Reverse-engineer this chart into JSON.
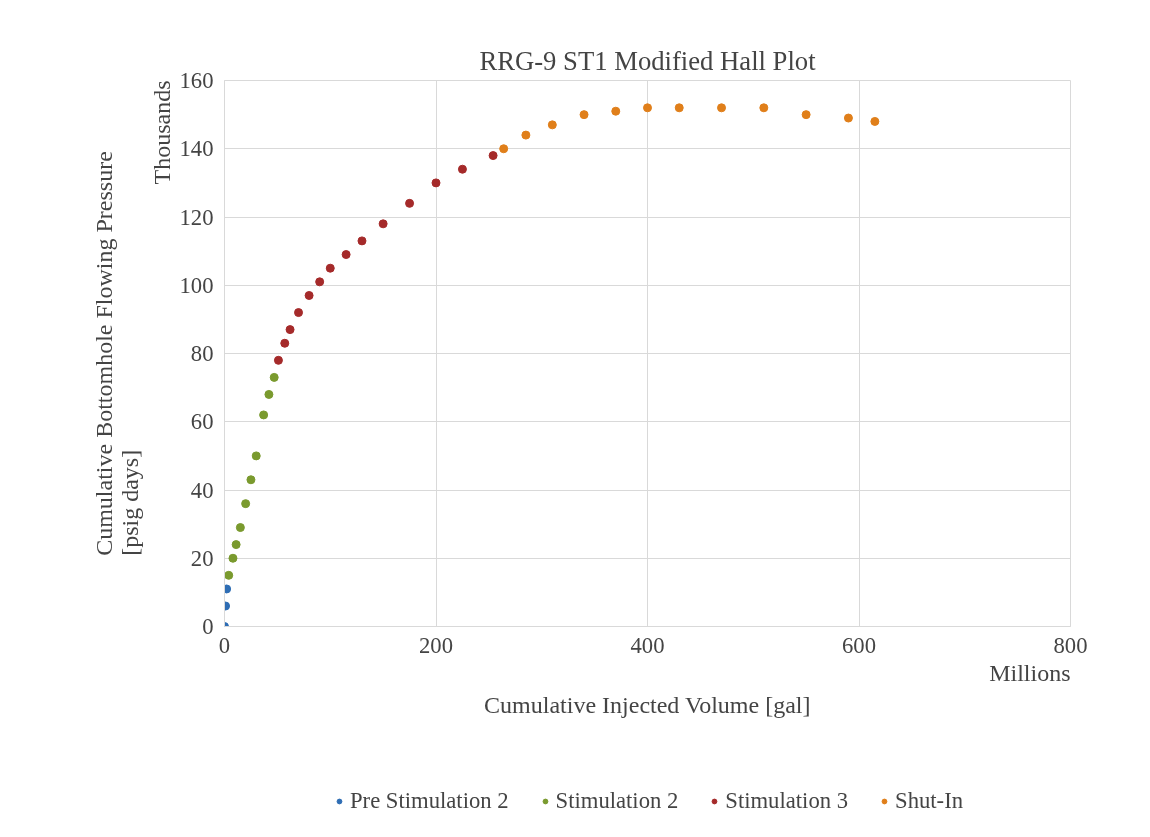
{
  "chart_data": {
    "type": "scatter",
    "title": "RRG-9 ST1 Modified Hall Plot",
    "xlabel": "Cumulative Injected Volume [gal]",
    "ylabel": "Cumulative Bottomhole Flowing Pressure\n[psig days]",
    "annotations": [
      "Thousands",
      "Millions"
    ],
    "xlim": [
      0,
      800
    ],
    "xticks": [
      0,
      200,
      400,
      600,
      800
    ],
    "ylim": [
      0,
      160
    ],
    "yticks": [
      0,
      20,
      40,
      60,
      80,
      100,
      120,
      140,
      160
    ],
    "grid": true,
    "legend": "bottom",
    "marker": "circle",
    "series": [
      {
        "name": "Pre Stimulation 2",
        "color": "#2e6db4",
        "x": [
          0,
          1,
          2
        ],
        "values": [
          0,
          6,
          11
        ]
      },
      {
        "name": "Stimulation 2",
        "color": "#7a9a2e",
        "x": [
          4,
          8,
          11,
          15,
          20,
          25,
          30,
          37,
          42,
          47
        ],
        "values": [
          15,
          20,
          24,
          29,
          36,
          43,
          50,
          62,
          68,
          73
        ]
      },
      {
        "name": "Stimulation 3",
        "color": "#a52a2a",
        "x": [
          51,
          57,
          62,
          70,
          80,
          90,
          100,
          115,
          130,
          150,
          175,
          200,
          225,
          254
        ],
        "values": [
          78,
          83,
          87,
          92,
          97,
          101,
          105,
          109,
          113,
          118,
          124,
          130,
          134,
          138
        ]
      },
      {
        "name": "Shut-In",
        "color": "#e07f1a",
        "x": [
          264,
          285,
          310,
          340,
          370,
          400,
          430,
          470,
          510,
          550,
          590,
          615
        ],
        "values": [
          140,
          144,
          147,
          150,
          151,
          152,
          152,
          152,
          152,
          150,
          149,
          148
        ]
      }
    ]
  }
}
